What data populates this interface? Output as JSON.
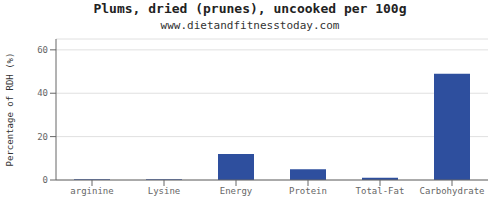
{
  "chart_data": {
    "type": "bar",
    "title": "Plums, dried (prunes), uncooked per 100g",
    "subtitle": "www.dietandfitnesstoday.com",
    "categories": [
      "arginine",
      "Lysine",
      "Energy",
      "Protein",
      "Total-Fat",
      "Carbohydrate"
    ],
    "values": [
      0.3,
      0.3,
      12,
      5,
      1,
      49
    ],
    "color": "#2e4f9e",
    "ylabel": "Percentage of RDH (%)",
    "ylim": [
      0,
      65
    ],
    "yticks": [
      0,
      20,
      40,
      60
    ],
    "grid": true
  }
}
